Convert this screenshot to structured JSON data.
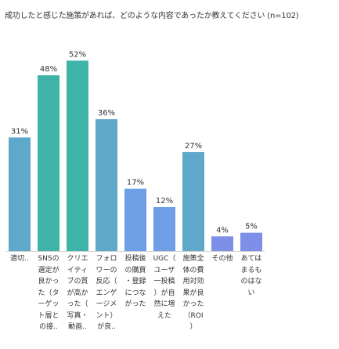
{
  "chart_data": {
    "type": "bar",
    "title": "成功したと感じた施策があれば、どのような内容であったか教えてください (n=102)",
    "categories": [
      "適切..",
      "SNSの\n選定が\n良かっ\nた（タ\nーゲッ\nト層と\nの接..",
      "クリエ\nイティ\nブの質\nが高か\nった（\n写真・\n動画..",
      "フォロ\nワーの\n反応（\nエンゲ\nージメ\nント）\nが良..",
      "投稿後\nの購買\n・登録\nにつな\nがった",
      "UGC（\nユーザ\n一投稿\n）が自\n然に増\nえた",
      "施策全\n体の費\n用対効\n果が良\nかった\n（ROI\n）",
      "その他",
      "あては\nまるも\nのはな\nい"
    ],
    "values": [
      31,
      48,
      52,
      36,
      17,
      12,
      27,
      4,
      5
    ],
    "value_labels": [
      "31%",
      "48%",
      "52%",
      "36%",
      "17%",
      "12%",
      "27%",
      "4%",
      "5%"
    ],
    "colors": [
      "#5ea8c9",
      "#3fb3a8",
      "#3fb3a8",
      "#5ea8c9",
      "#6e9ee6",
      "#6e9ee6",
      "#5ea8c9",
      "#7e8fe8",
      "#7e8fe8"
    ],
    "ylim": [
      0,
      60
    ],
    "grid": false,
    "legend": "none",
    "xlabel": "",
    "ylabel": ""
  }
}
